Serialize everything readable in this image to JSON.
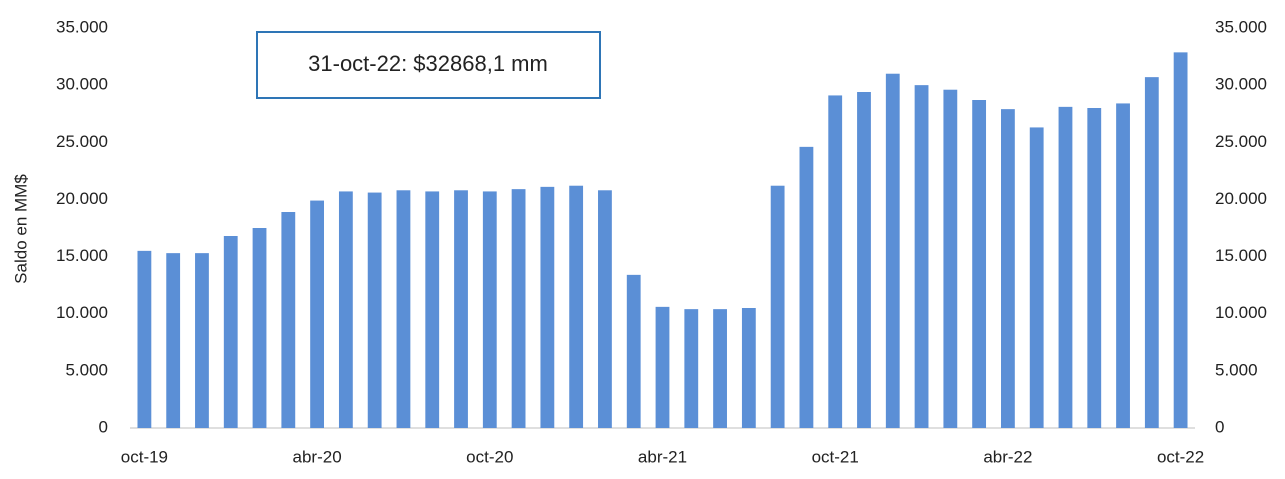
{
  "chart_data": {
    "type": "bar",
    "y_label": "Saldo en MM$",
    "annotation": "31-oct-22: $32868,1 mm",
    "categories": [
      "oct-19",
      null,
      null,
      null,
      null,
      null,
      "abr-20",
      null,
      null,
      null,
      null,
      null,
      "oct-20",
      null,
      null,
      null,
      null,
      null,
      "abr-21",
      null,
      null,
      null,
      null,
      null,
      "oct-21",
      null,
      null,
      null,
      null,
      null,
      "abr-22",
      null,
      null,
      null,
      null,
      null,
      "oct-22"
    ],
    "values": [
      15500,
      15300,
      15300,
      16800,
      17500,
      18900,
      19900,
      20700,
      20600,
      20800,
      20700,
      20800,
      20700,
      20900,
      21100,
      21200,
      20800,
      13400,
      10600,
      10400,
      10400,
      10500,
      21200,
      24600,
      29100,
      29400,
      31000,
      30000,
      29600,
      28700,
      27900,
      26300,
      28100,
      28000,
      28400,
      30700,
      32868.1
    ],
    "color": "#5b8fd6",
    "ylim": [
      0,
      35000
    ],
    "yticks": [
      0,
      {
        "value": 5000,
        "label": "5.000"
      },
      {
        "value": 10000,
        "label": "10.000"
      },
      {
        "value": 15000,
        "label": "15.000"
      },
      {
        "value": 20000,
        "label": "20.000"
      },
      {
        "value": 25000,
        "label": "25.000"
      },
      {
        "value": 30000,
        "label": "30.000"
      },
      {
        "value": 35000,
        "label": "35.000"
      }
    ],
    "y2lim": [
      0,
      35000
    ],
    "y2ticks": [
      0,
      {
        "value": 5000,
        "label": "5.000"
      },
      {
        "value": 10000,
        "label": "10.000"
      },
      {
        "value": 15000,
        "label": "15.000"
      },
      {
        "value": 20000,
        "label": "20.000"
      },
      {
        "value": 25000,
        "label": "25.000"
      },
      {
        "value": 30000,
        "label": "30.000"
      },
      {
        "value": 35000,
        "label": "35.000"
      }
    ],
    "grid": false
  }
}
